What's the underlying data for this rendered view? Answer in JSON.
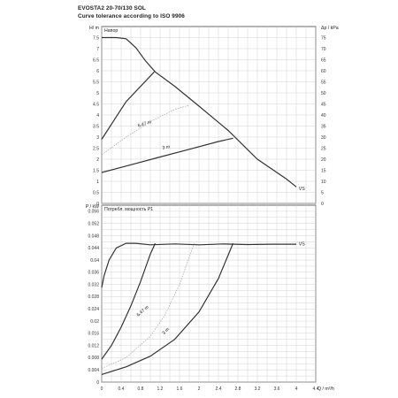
{
  "header": {
    "title": "EVOSTA2 20-70/130 SOL",
    "subtitle": "Curve tolerance according to ISO 9906"
  },
  "chart_data": [
    {
      "type": "line",
      "title": "Напор",
      "ylabel": "H/ m",
      "ylabel_right": "Δp / kPa",
      "xlim": [
        0,
        4.4
      ],
      "ylim": [
        0,
        8
      ],
      "y_ticks": [
        0,
        0.5,
        1,
        1.5,
        2,
        2.5,
        3,
        3.5,
        4,
        4.5,
        5,
        5.5,
        6,
        6.5,
        7,
        7.5
      ],
      "y_right_ticks": [
        0,
        5,
        10,
        15,
        20,
        25,
        30,
        35,
        40,
        45,
        50,
        55,
        60,
        65,
        70,
        75
      ],
      "series": [
        {
          "name": "VS",
          "x": [
            0,
            0.3,
            0.5,
            0.7,
            0.9,
            1.1,
            1.5,
            2.0,
            2.6,
            3.2,
            3.8,
            4.0
          ],
          "y": [
            7.5,
            7.5,
            7.45,
            7.05,
            6.45,
            5.95,
            5.3,
            4.4,
            3.3,
            2.0,
            1.1,
            0.75
          ]
        },
        {
          "name": "",
          "x": [
            0,
            0.5,
            1.08
          ],
          "y": [
            2.9,
            4.6,
            5.95
          ]
        },
        {
          "name": "6.47 m",
          "x": [
            0,
            0.5,
            1.0,
            1.5,
            1.8
          ],
          "y": [
            2.2,
            3.0,
            3.7,
            4.25,
            4.45
          ],
          "dashed": true
        },
        {
          "name": "3 m",
          "x": [
            0,
            0.6,
            1.2,
            1.8,
            2.4,
            2.7
          ],
          "y": [
            1.4,
            1.75,
            2.1,
            2.45,
            2.8,
            2.95
          ]
        }
      ]
    },
    {
      "type": "line",
      "title": "Потребл. мощность P1",
      "ylabel": "P / kW",
      "xlabel": "Q / m³/h",
      "xlim": [
        0,
        4.4
      ],
      "ylim": [
        0,
        0.058
      ],
      "x_ticks": [
        0,
        0.4,
        0.8,
        1.2,
        1.6,
        2,
        2.4,
        2.8,
        3.2,
        3.6,
        4,
        4.4
      ],
      "y_ticks": [
        0,
        0.002,
        0.004,
        0.006,
        0.008,
        0.01,
        0.012,
        0.014,
        0.016,
        0.018,
        0.02,
        0.022,
        0.024,
        0.026,
        0.028,
        0.03,
        0.032,
        0.034,
        0.036,
        0.038,
        0.04,
        0.042,
        0.044,
        0.046,
        0.048,
        0.05,
        0.052,
        0.054,
        0.056
      ],
      "y_labels": [
        "0",
        "0.004",
        "0.008",
        "0.012",
        "0.016",
        "0.02",
        "0.024",
        "0.028",
        "0.032",
        "0.036",
        "0.04",
        "0.044",
        "0.048",
        "0.052",
        "0.056"
      ],
      "series": [
        {
          "name": "VS",
          "x": [
            0,
            0.05,
            0.15,
            0.3,
            0.5,
            0.7,
            1.0,
            1.5,
            2.0,
            2.5,
            3.0,
            3.5,
            4.0
          ],
          "y": [
            0.031,
            0.035,
            0.04,
            0.044,
            0.0455,
            0.0455,
            0.045,
            0.0453,
            0.045,
            0.0453,
            0.0451,
            0.0452,
            0.0452
          ]
        },
        {
          "name": "",
          "x": [
            0,
            0.2,
            0.4,
            0.6,
            0.8,
            1.0,
            1.1
          ],
          "y": [
            0.0075,
            0.012,
            0.018,
            0.025,
            0.033,
            0.042,
            0.0455
          ]
        },
        {
          "name": "6.47 m",
          "x": [
            0,
            0.5,
            1.0,
            1.3,
            1.6,
            1.9
          ],
          "y": [
            0.0045,
            0.008,
            0.015,
            0.022,
            0.032,
            0.0455
          ],
          "dashed": true
        },
        {
          "name": "3 m",
          "x": [
            0,
            0.5,
            1.0,
            1.5,
            2.0,
            2.4,
            2.7
          ],
          "y": [
            0.0025,
            0.005,
            0.0085,
            0.014,
            0.023,
            0.034,
            0.0455
          ]
        }
      ]
    }
  ]
}
